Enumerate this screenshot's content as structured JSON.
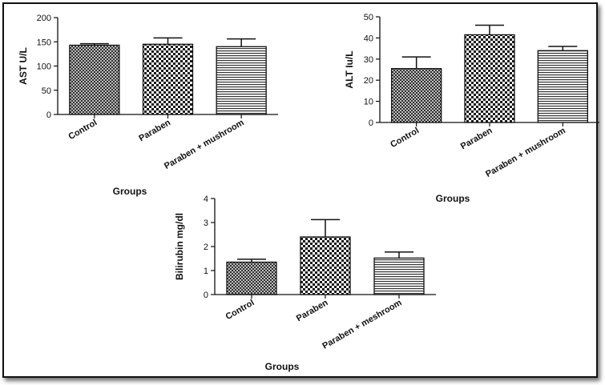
{
  "colors": {
    "ink": "#111111",
    "background": "#ffffff",
    "frame_border": "#111111"
  },
  "chart_data": [
    {
      "id": "ast",
      "type": "bar",
      "categories": [
        "Control",
        "Paraben",
        "Paraben + mushroom"
      ],
      "values": [
        143,
        145,
        140
      ],
      "errors": [
        3,
        13,
        16
      ],
      "patterns": [
        "crosshatch",
        "checker",
        "horizontal-lines"
      ],
      "xlabel": "Groups",
      "ylabel": "AST U/L",
      "ylim": [
        0,
        200
      ],
      "yticks": [
        "0",
        "50",
        "100",
        "150",
        "200"
      ],
      "grid": false,
      "legend": "none"
    },
    {
      "id": "alt",
      "type": "bar",
      "categories": [
        "Control",
        "Paraben",
        "Paraben + mushroom"
      ],
      "values": [
        25.5,
        41.5,
        34
      ],
      "errors": [
        5.5,
        4.5,
        2
      ],
      "patterns": [
        "crosshatch",
        "checker",
        "horizontal-lines"
      ],
      "xlabel": "Groups",
      "ylabel": "ALT Iu/L",
      "ylim": [
        0,
        50
      ],
      "yticks": [
        "0",
        "10",
        "20",
        "30",
        "40",
        "50"
      ],
      "grid": false,
      "legend": "none"
    },
    {
      "id": "bili",
      "type": "bar",
      "categories": [
        "Control",
        "Paraben",
        "Paraben + meshroom"
      ],
      "values": [
        1.35,
        2.4,
        1.52
      ],
      "errors": [
        0.12,
        0.72,
        0.25
      ],
      "patterns": [
        "crosshatch",
        "checker",
        "horizontal-lines"
      ],
      "xlabel": "Groups",
      "ylabel": "Bilirubin mg/dl",
      "ylim": [
        0,
        4
      ],
      "yticks": [
        "0",
        "1",
        "2",
        "3",
        "4"
      ],
      "grid": false,
      "legend": "none"
    }
  ]
}
